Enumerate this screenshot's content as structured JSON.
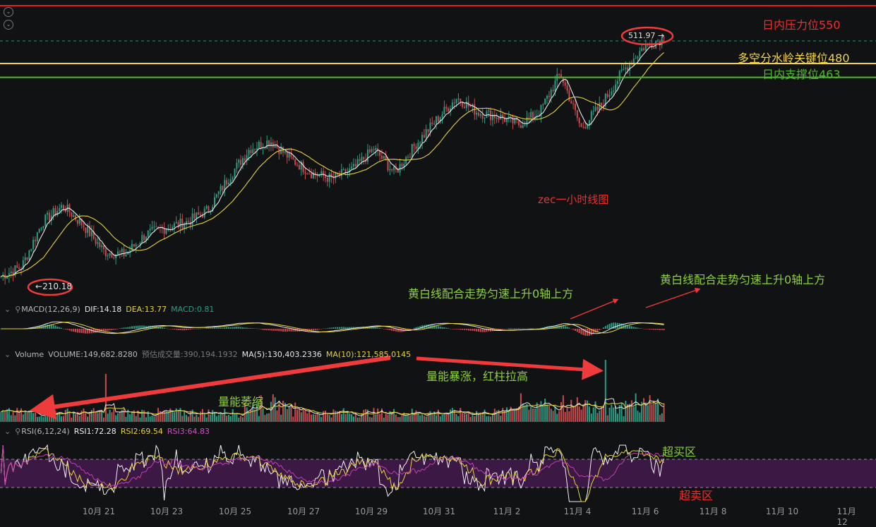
{
  "colors": {
    "bg": "#111214",
    "up": "#2e9c83",
    "down": "#c94a4f",
    "ma_white": "#e8e8e8",
    "ma_yellow": "#e6d23a",
    "resistance": "#e02020",
    "key_level": "#f2d34a",
    "support": "#4fb82f",
    "rsi_band": "#3c1945",
    "rsi_line1": "#f0f0f0",
    "rsi_line2": "#e6d23a",
    "rsi_line3": "#c040b0",
    "arrow": "#ef3b3b"
  },
  "price": {
    "last_label": "511.97",
    "low_label": "210.18"
  },
  "annotations": {
    "resistance": "日内压力位550",
    "key_level": "多空分水岭关键位480",
    "support": "日内支撑位463",
    "chart_title": "zec一小时线图",
    "macd_note_1": "黄白线配合走势匀速上升0轴上方",
    "macd_note_2": "黄白线配合走势匀速上升0轴上方",
    "volume_surge": "量能暴涨，红柱拉高",
    "volume_shrink": "量能萎缩",
    "overbought": "超买区",
    "oversold": "超卖区"
  },
  "macd": {
    "name": "MACD(12,26,9)",
    "dif": "DIF:14.18",
    "dea": "DEA:13.77",
    "macd": "MACD:0.81"
  },
  "volume": {
    "name": "Volume",
    "volume": "VOLUME:149,682.8280",
    "estimated": "预估成交量:390,194.1932",
    "ma5": "MA(5):130,403.2336",
    "ma10": "MA(10):121,585.0145"
  },
  "rsi": {
    "name": "RSI(6,12,24)",
    "rsi1": "RSI1:72.28",
    "rsi2": "RSI2:69.54",
    "rsi3": "RSI3:64.83"
  },
  "icons": [
    "eye-icon",
    "bell-icon",
    "collapse-icon",
    "arrow-icon"
  ],
  "x_ticks": [
    "10月 21",
    "10月 23",
    "10月 25",
    "10月 27",
    "10月 29",
    "10月 31",
    "11月 2",
    "11月 4",
    "11月 6",
    "11月 8",
    "11月 10",
    "11月 12"
  ],
  "chart_data": {
    "type": "candlestick",
    "series": [
      {
        "name": "zec",
        "points": [
          {
            "x": "10月 20",
            "y": 218
          },
          {
            "x": "10月 21",
            "y": 230
          },
          {
            "x": "10月 21",
            "y": 285
          },
          {
            "x": "10月 22",
            "y": 305
          },
          {
            "x": "10月 22",
            "y": 280
          },
          {
            "x": "10月 23",
            "y": 248
          },
          {
            "x": "10月 24",
            "y": 245
          },
          {
            "x": "10月 24",
            "y": 270
          },
          {
            "x": "10月 25",
            "y": 278
          },
          {
            "x": "10月 26",
            "y": 285
          },
          {
            "x": "10月 26",
            "y": 300
          },
          {
            "x": "10月 27",
            "y": 340
          },
          {
            "x": "10月 27",
            "y": 375
          },
          {
            "x": "10月 28",
            "y": 385
          },
          {
            "x": "10月 28",
            "y": 362
          },
          {
            "x": "10月 29",
            "y": 345
          },
          {
            "x": "10月 29",
            "y": 338
          },
          {
            "x": "10月 30",
            "y": 350
          },
          {
            "x": "10月 30",
            "y": 375
          },
          {
            "x": "10月 31",
            "y": 345
          },
          {
            "x": "10月 31",
            "y": 380
          },
          {
            "x": "11月 1",
            "y": 410
          },
          {
            "x": "11月 1",
            "y": 438
          },
          {
            "x": "11月 2",
            "y": 420
          },
          {
            "x": "11月 3",
            "y": 415
          },
          {
            "x": "11月 3",
            "y": 405
          },
          {
            "x": "11月 4",
            "y": 420
          },
          {
            "x": "11月 4",
            "y": 468
          },
          {
            "x": "11月 5",
            "y": 400
          },
          {
            "x": "11月 5",
            "y": 430
          },
          {
            "x": "11月 6",
            "y": 470
          },
          {
            "x": "11月 6",
            "y": 500
          },
          {
            "x": "11月 6",
            "y": 511.97
          }
        ]
      }
    ],
    "levels": {
      "resistance": 550,
      "key": 480,
      "support": 463
    },
    "price_markers": {
      "high": 511.97,
      "low": 210.18
    },
    "title": "zec一小时线图",
    "xlabel": "",
    "ylabel": "",
    "grid": false,
    "legend": "none"
  }
}
